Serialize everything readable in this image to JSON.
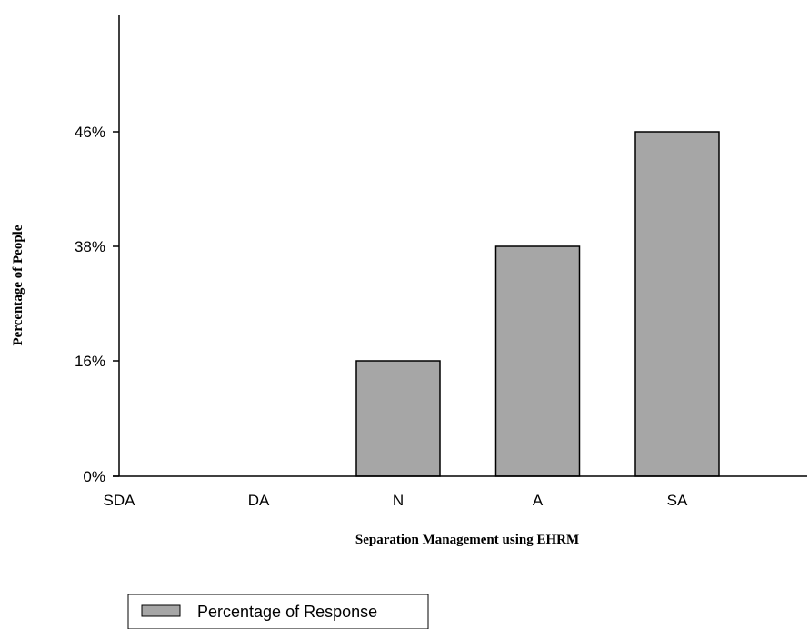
{
  "chart_data": {
    "type": "bar",
    "categories": [
      "SDA",
      "DA",
      "N",
      "A",
      "SA"
    ],
    "series": [
      {
        "name": "Percentage of Response",
        "values": [
          0,
          0,
          16,
          38,
          46
        ]
      }
    ],
    "y_ticks": [
      "0%",
      "16%",
      "38%",
      "46%"
    ],
    "y_tick_values": [
      0,
      16,
      38,
      46
    ],
    "xlabel": "Separation Management using EHRM",
    "ylabel": "Percentage of People",
    "grid": false,
    "legend_position": "bottom-left",
    "bar_color": "#a6a6a6"
  }
}
